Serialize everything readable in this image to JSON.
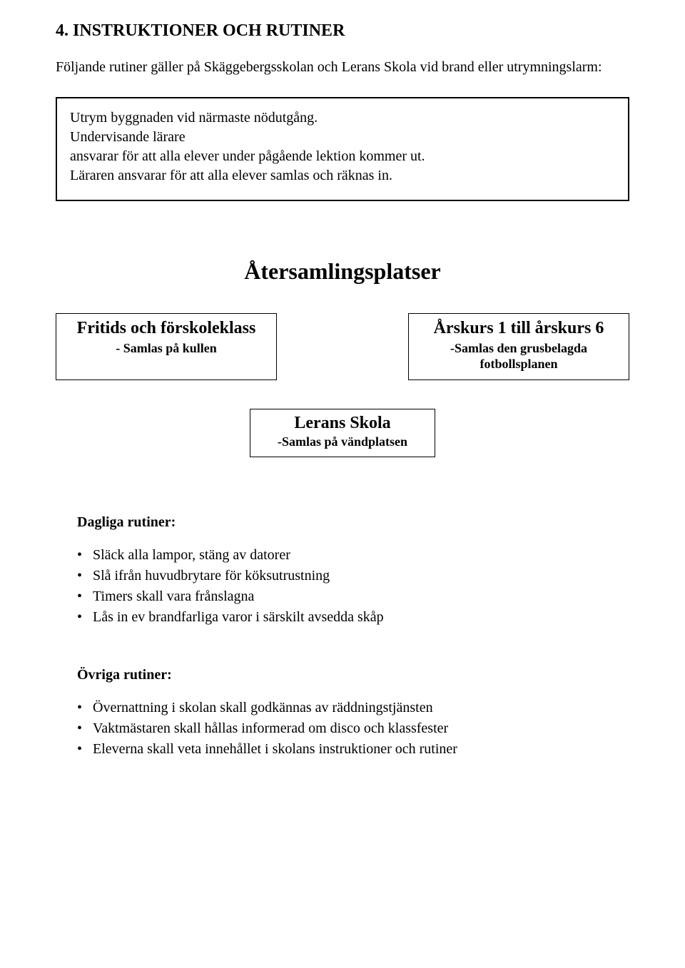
{
  "heading": "4. INSTRUKTIONER OCH RUTINER",
  "intro": "Följande rutiner gäller på Skäggebergsskolan och Lerans Skola vid brand eller utrymningslarm:",
  "box": {
    "line1": "Utrym byggnaden vid närmaste nödutgång.",
    "line2": "Undervisande lärare",
    "line3": "ansvarar för att alla elever under pågående lektion kommer ut.",
    "line4": "Läraren ansvarar för att alla elever samlas och räknas in."
  },
  "center_heading": "Återsamlingsplatser",
  "left_box": {
    "title": "Fritids och förskoleklass",
    "sub": "- Samlas på kullen"
  },
  "right_box": {
    "title": "Årskurs 1 till årskurs 6",
    "sub1": "-Samlas den grusbelagda",
    "sub2": "fotbollsplanen"
  },
  "mid_box": {
    "title": "Lerans Skola",
    "sub": "-Samlas på vändplatsen"
  },
  "daily": {
    "heading": "Dagliga rutiner:",
    "items": [
      "Släck alla lampor, stäng av datorer",
      "Slå ifrån huvudbrytare för köksutrustning",
      "Timers skall vara frånslagna",
      "Lås in ev brandfarliga varor i särskilt avsedda skåp"
    ]
  },
  "other": {
    "heading": "Övriga rutiner:",
    "items": [
      "Övernattning i skolan skall godkännas av räddningstjänsten",
      "Vaktmästaren skall hållas informerad om disco och klassfester",
      "Eleverna skall veta innehållet i skolans instruktioner och rutiner"
    ]
  }
}
